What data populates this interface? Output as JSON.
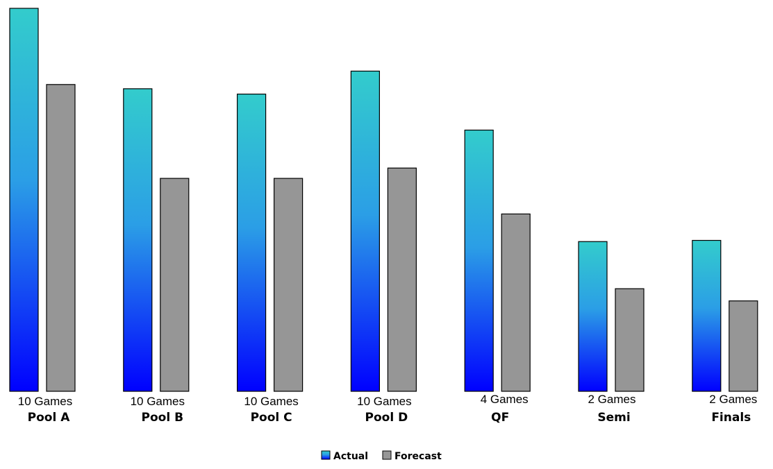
{
  "chart_data": {
    "type": "bar",
    "categories": [
      "Pool A",
      "Pool B",
      "Pool C",
      "Pool D",
      "QF",
      "Semi",
      "Finals"
    ],
    "sublabels": [
      "10 Games",
      "10 Games",
      "10 Games",
      "10 Games",
      "4 Games",
      "2 Games",
      "2 Games"
    ],
    "series": [
      {
        "name": "Actual",
        "values": [
          100,
          79,
          77.6,
          83.6,
          68.2,
          39.1,
          39.4
        ]
      },
      {
        "name": "Forecast",
        "values": [
          80.1,
          55.6,
          55.6,
          58.3,
          46.3,
          26.8,
          23.6
        ]
      }
    ],
    "ylim": [
      0,
      100
    ],
    "grid": false,
    "y_axis_visible": false,
    "legend_position": "bottom-center",
    "colors": {
      "actual_gradient_top": "#33cccc",
      "actual_gradient_mid": "#2b9ee6",
      "actual_gradient_bottom": "#0000ff",
      "forecast": "#969696",
      "outline": "#000000"
    }
  }
}
